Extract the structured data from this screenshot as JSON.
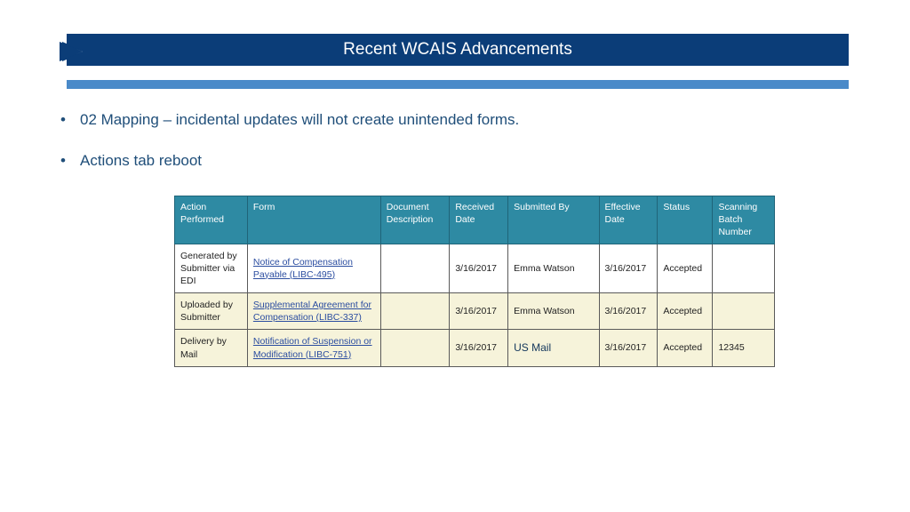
{
  "colors": {
    "dark_blue": "#0b3d78",
    "light_blue": "#4a8ac9",
    "bullet_fg": "#1f4e79",
    "th_bg": "#2e8aa3",
    "th_border": "#1f6479",
    "row_alt": "#f6f3da",
    "link_fg": "#2b4da0"
  },
  "title": "Recent WCAIS Advancements",
  "bullets": [
    "02 Mapping – incidental updates will not create unintended forms.",
    "Actions tab reboot"
  ],
  "table": {
    "columns": [
      "Action Performed",
      "Form",
      "Document Description",
      "Received Date",
      "Submitted By",
      "Effective Date",
      "Status",
      "Scanning Batch Number"
    ],
    "rows": [
      {
        "alt": false,
        "action": "Generated by Submitter via EDI",
        "form": "Notice of Compensation Payable (LIBC-495)",
        "doc": "",
        "received": "3/16/2017",
        "submitted_by": "Emma Watson",
        "effective": "3/16/2017",
        "status": "Accepted",
        "batch": ""
      },
      {
        "alt": true,
        "action": "Uploaded by Submitter",
        "form": "Supplemental Agreement for Compensation (LIBC-337)",
        "doc": "",
        "received": "3/16/2017",
        "submitted_by": "Emma Watson",
        "effective": "3/16/2017",
        "status": "Accepted",
        "batch": ""
      },
      {
        "alt": true,
        "action": "Delivery by Mail",
        "form": "Notification of Suspension or Modification (LIBC-751)",
        "doc": "",
        "received": "3/16/2017",
        "submitted_by": "US Mail",
        "submitted_by_class": "us-mail",
        "effective": "3/16/2017",
        "status": "Accepted",
        "batch": "12345"
      }
    ]
  }
}
